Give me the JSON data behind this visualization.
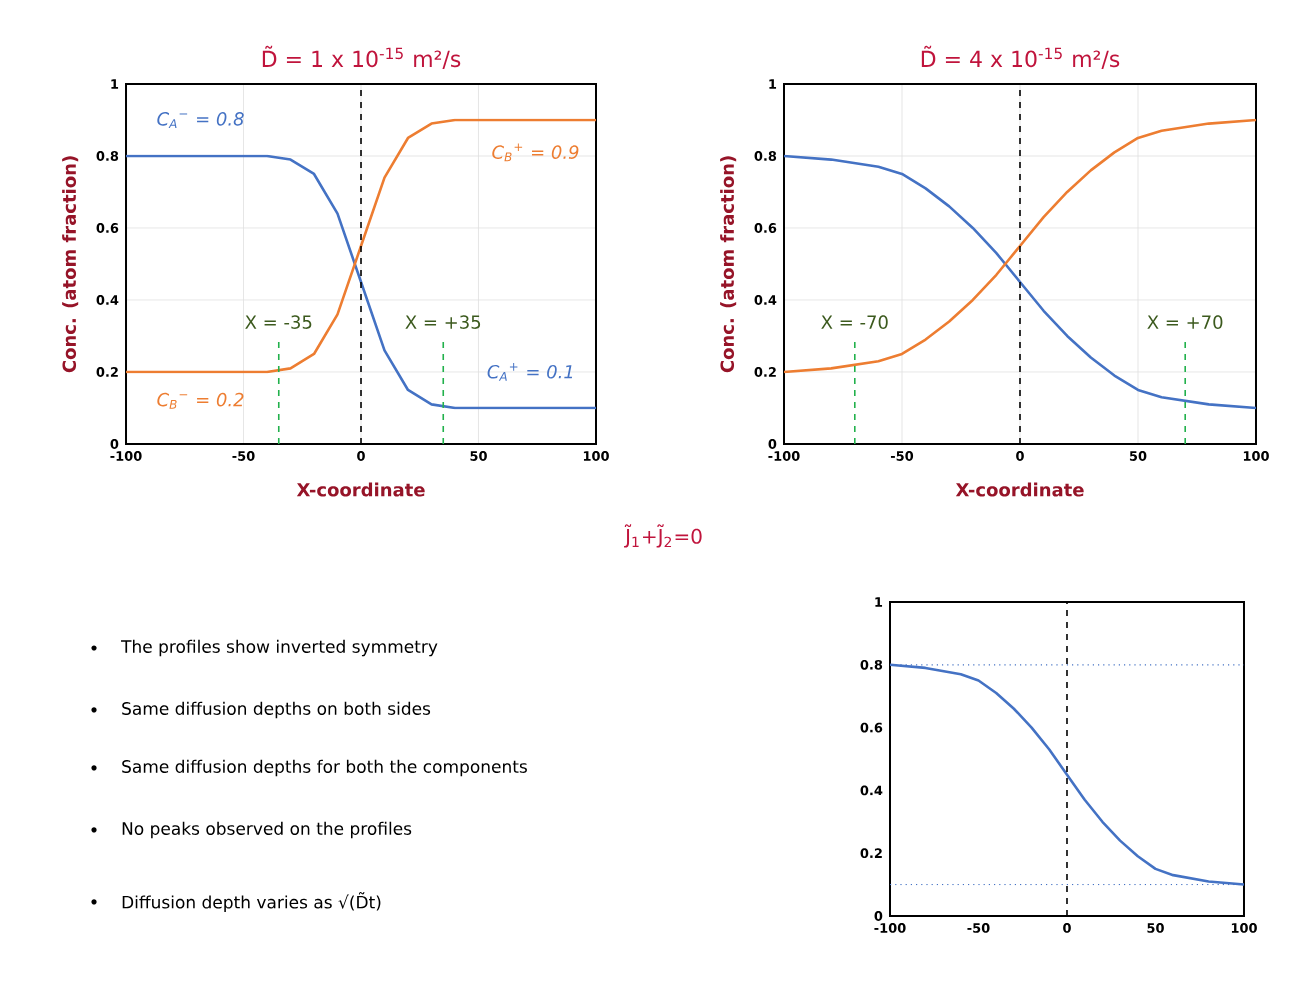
{
  "chart_data": [
    {
      "type": "line",
      "title": "D̃ = 1 x 10$^{-15}$ m²/s",
      "xlabel": "X-coordinate",
      "ylabel": "Conc. (atom fraction)",
      "grid": true,
      "xlim": [
        -100,
        100
      ],
      "ylim": [
        0,
        1
      ],
      "xticks": [
        -100,
        -50,
        0,
        50,
        100
      ],
      "yticks": [
        0,
        0.2,
        0.4,
        0.6,
        0.8,
        1
      ],
      "x": [
        -100,
        -80,
        -60,
        -40,
        -30,
        -20,
        -10,
        0,
        10,
        20,
        30,
        40,
        60,
        80,
        100
      ],
      "series": [
        {
          "color": "#4472c4",
          "values": [
            0.8,
            0.8,
            0.8,
            0.8,
            0.79,
            0.75,
            0.64,
            0.45,
            0.26,
            0.15,
            0.11,
            0.1,
            0.1,
            0.1,
            0.1
          ]
        },
        {
          "color": "#ed7d31",
          "values": [
            0.2,
            0.2,
            0.2,
            0.2,
            0.21,
            0.25,
            0.36,
            0.55,
            0.74,
            0.85,
            0.89,
            0.9,
            0.9,
            0.9,
            0.9
          ]
        }
      ],
      "ref_lines": [
        {
          "axis": "x",
          "value": 0,
          "color": "#000000",
          "line_style": "dashed"
        },
        {
          "axis": "x",
          "value": -35,
          "label": "X = -35",
          "color": "#22b14c",
          "line_style": "dashed"
        },
        {
          "axis": "x",
          "value": 35,
          "label": "X = +35",
          "color": "#22b14c",
          "line_style": "dashed"
        }
      ],
      "annotations": [
        "C$_{A}$$^{−}$ = 0.8",
        "C$_{B}$$^{+}$ = 0.9",
        "C$_{B}$$^{−}$ = 0.2",
        "C$_{A}$$^{+}$ = 0.1"
      ]
    },
    {
      "type": "line",
      "title": "D̃ = 4 x 10$^{-15}$ m²/s",
      "xlabel": "X-coordinate",
      "ylabel": "Conc. (atom fraction)",
      "grid": true,
      "xlim": [
        -100,
        100
      ],
      "ylim": [
        0,
        1
      ],
      "xticks": [
        -100,
        -50,
        0,
        50,
        100
      ],
      "yticks": [
        0,
        0.2,
        0.4,
        0.6,
        0.8,
        1
      ],
      "x": [
        -100,
        -80,
        -60,
        -50,
        -40,
        -30,
        -20,
        -10,
        0,
        10,
        20,
        30,
        40,
        50,
        60,
        80,
        100
      ],
      "series": [
        {
          "color": "#4472c4",
          "values": [
            0.8,
            0.79,
            0.77,
            0.75,
            0.71,
            0.66,
            0.6,
            0.53,
            0.45,
            0.37,
            0.3,
            0.24,
            0.19,
            0.15,
            0.13,
            0.11,
            0.1
          ]
        },
        {
          "color": "#ed7d31",
          "values": [
            0.2,
            0.21,
            0.23,
            0.25,
            0.29,
            0.34,
            0.4,
            0.47,
            0.55,
            0.63,
            0.7,
            0.76,
            0.81,
            0.85,
            0.87,
            0.89,
            0.9
          ]
        }
      ],
      "ref_lines": [
        {
          "axis": "x",
          "value": 0,
          "color": "#000000",
          "line_style": "dashed"
        },
        {
          "axis": "x",
          "value": -70,
          "label": "X = -70",
          "color": "#22b14c",
          "line_style": "dashed"
        },
        {
          "axis": "x",
          "value": 70,
          "label": "X = +70",
          "color": "#22b14c",
          "line_style": "dashed"
        }
      ]
    },
    {
      "type": "line",
      "grid": false,
      "xlim": [
        -100,
        100
      ],
      "ylim": [
        0,
        1
      ],
      "xticks": [
        -100,
        -50,
        0,
        50,
        100
      ],
      "yticks": [
        0,
        0.2,
        0.4,
        0.6,
        0.8,
        1
      ],
      "x": [
        -100,
        -80,
        -60,
        -50,
        -40,
        -30,
        -20,
        -10,
        0,
        10,
        20,
        30,
        40,
        50,
        60,
        80,
        100
      ],
      "series": [
        {
          "color": "#4472c4",
          "values": [
            0.8,
            0.79,
            0.77,
            0.75,
            0.71,
            0.66,
            0.6,
            0.53,
            0.45,
            0.37,
            0.3,
            0.24,
            0.19,
            0.15,
            0.13,
            0.11,
            0.1
          ]
        }
      ],
      "ref_lines": [
        {
          "axis": "x",
          "value": 0,
          "color": "#000000",
          "line_style": "dashed"
        },
        {
          "axis": "y",
          "value": 0.8,
          "color": "#4472c4",
          "line_style": "dotted"
        },
        {
          "axis": "y",
          "value": 0.1,
          "color": "#4472c4",
          "line_style": "dotted"
        }
      ]
    },
    {
      "type": "other",
      "annotations": [
        "The profiles show inverted symmetry",
        "Same diffusion depths on both sides",
        "Same diffusion depths for both the components",
        "No peaks observed on the profiles",
        "Diffusion depth varies as √(D̃t)",
        "J̃$_{1}$+J̃$_{2}$=0"
      ]
    }
  ]
}
